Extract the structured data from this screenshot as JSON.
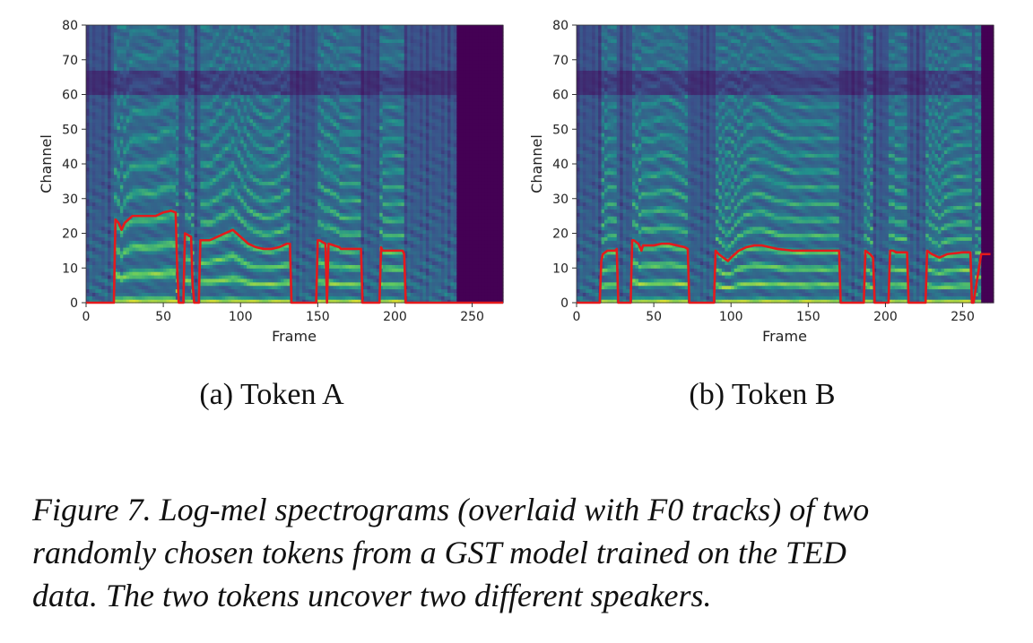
{
  "chart_data": [
    {
      "type": "heatmap",
      "subcaption": "(a) Token A",
      "xlabel": "Frame",
      "ylabel": "Channel",
      "xlim": [
        0,
        270
      ],
      "ylim": [
        0,
        80
      ],
      "xticks": [
        0,
        50,
        100,
        150,
        200,
        250
      ],
      "yticks": [
        0,
        10,
        20,
        30,
        40,
        50,
        60,
        70,
        80
      ],
      "colormap": "viridis",
      "speech_end_frame": 240,
      "f0_color": "#e41a1c",
      "f0_track": {
        "x": [
          0,
          18,
          19,
          21,
          23,
          25,
          30,
          35,
          40,
          45,
          50,
          55,
          58,
          59,
          60,
          61,
          63,
          64,
          68,
          69,
          70,
          71,
          73,
          74,
          80,
          85,
          90,
          95,
          100,
          105,
          110,
          115,
          120,
          125,
          130,
          132,
          133,
          134,
          149,
          150,
          151,
          155,
          156,
          157,
          164,
          165,
          166,
          170,
          178,
          179,
          180,
          190,
          191,
          192,
          195,
          200,
          205,
          206,
          207,
          270
        ],
        "y": [
          0,
          0,
          24,
          23,
          21,
          23,
          25,
          25,
          25,
          25,
          26,
          26.5,
          26,
          10,
          0,
          0,
          0,
          20,
          19,
          5,
          0,
          0,
          0,
          18,
          18,
          19,
          20,
          21,
          19,
          17,
          16,
          15.5,
          15.5,
          16,
          17,
          17,
          0,
          0,
          0,
          18,
          18,
          17,
          0,
          17,
          16,
          15.5,
          15.5,
          15.5,
          15.5,
          0,
          0,
          0,
          16,
          15,
          15,
          15,
          15,
          14,
          0,
          0
        ]
      }
    },
    {
      "type": "heatmap",
      "subcaption": "(b) Token B",
      "xlabel": "Frame",
      "ylabel": "Channel",
      "xlim": [
        0,
        270
      ],
      "ylim": [
        0,
        80
      ],
      "xticks": [
        0,
        50,
        100,
        150,
        200,
        250
      ],
      "yticks": [
        0,
        10,
        20,
        30,
        40,
        50,
        60,
        70,
        80
      ],
      "colormap": "viridis",
      "speech_end_frame": 262,
      "f0_color": "#e41a1c",
      "f0_track": {
        "x": [
          0,
          15,
          16,
          17,
          20,
          25,
          26,
          27,
          35,
          36,
          37,
          40,
          42,
          43,
          50,
          55,
          60,
          65,
          70,
          72,
          73,
          74,
          89,
          90,
          92,
          95,
          98,
          100,
          105,
          110,
          115,
          120,
          125,
          130,
          140,
          150,
          160,
          170,
          171,
          172,
          186,
          187,
          190,
          192,
          193,
          202,
          203,
          205,
          207,
          210,
          214,
          215,
          216,
          226,
          227,
          230,
          235,
          240,
          250,
          255,
          256,
          257,
          262,
          263,
          268
        ],
        "y": [
          0,
          0,
          12,
          14,
          15,
          15,
          15.5,
          0,
          0,
          18,
          18,
          17,
          15,
          16.5,
          16.5,
          17,
          17,
          16.5,
          16,
          15.5,
          0,
          0,
          0,
          15,
          14,
          13,
          12,
          13,
          15,
          16,
          16.5,
          16.5,
          16,
          15.5,
          15,
          15,
          15,
          15,
          0,
          0,
          0,
          15,
          14,
          13,
          0,
          0,
          15,
          15,
          14.5,
          14.5,
          14.5,
          0,
          0,
          0,
          15,
          14,
          13,
          14,
          14.5,
          14.5,
          0,
          0,
          14,
          14,
          14
        ]
      }
    }
  ],
  "caption": [
    "Figure 7. Log-mel spectrograms (overlaid with F0 tracks) of two",
    "randomly chosen tokens from a GST model trained on the TED",
    "data. The two tokens uncover two different speakers."
  ]
}
